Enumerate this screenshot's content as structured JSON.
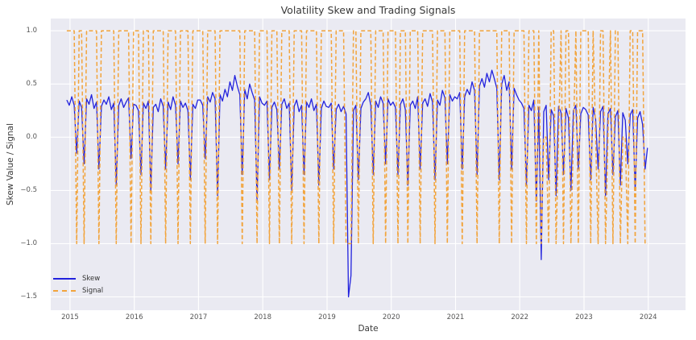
{
  "figure": {
    "background": "#ffffff"
  },
  "chart_data": {
    "type": "line",
    "title": "Volatility Skew and Trading Signals",
    "xlabel": "Date",
    "ylabel": "Skew Value / Signal",
    "plot_background": "#eaeaf2",
    "grid_color": "#ffffff",
    "grid": true,
    "legend_position": "lower-left",
    "xlim": [
      2014.7,
      2024.58
    ],
    "ylim": [
      -1.625,
      1.115
    ],
    "xticks": [
      2015,
      2016,
      2017,
      2018,
      2019,
      2020,
      2021,
      2022,
      2023,
      2024
    ],
    "xtick_labels": [
      "2015",
      "2016",
      "2017",
      "2018",
      "2019",
      "2020",
      "2021",
      "2022",
      "2023",
      "2024"
    ],
    "yticks": [
      1.0,
      0.5,
      0.0,
      -0.5,
      -1.0,
      -1.5
    ],
    "ytick_labels": [
      "1.0",
      "0.5",
      "0.0",
      "−0.5",
      "−1.0",
      "−1.5"
    ],
    "x_start": 2014.95,
    "x_step": 0.0384615,
    "series": [
      {
        "name": "Skew",
        "color": "#2222dd",
        "style": "solid",
        "values": [
          0.35,
          0.3,
          0.38,
          0.3,
          -0.15,
          0.34,
          0.28,
          -0.25,
          0.36,
          0.31,
          0.4,
          0.27,
          0.33,
          -0.3,
          0.29,
          0.35,
          0.31,
          0.38,
          0.26,
          0.32,
          -0.45,
          0.3,
          0.36,
          0.28,
          0.33,
          0.37,
          -0.2,
          0.31,
          0.3,
          0.25,
          -0.35,
          0.32,
          0.27,
          0.34,
          -0.5,
          0.28,
          0.31,
          0.24,
          0.36,
          0.29,
          -0.3,
          0.33,
          0.26,
          0.38,
          0.3,
          -0.25,
          0.34,
          0.28,
          0.32,
          0.25,
          -0.4,
          0.31,
          0.27,
          0.35,
          0.35,
          0.3,
          -0.2,
          0.38,
          0.33,
          0.42,
          0.36,
          -0.55,
          0.4,
          0.34,
          0.45,
          0.38,
          0.52,
          0.44,
          0.58,
          0.48,
          0.4,
          -0.35,
          0.45,
          0.36,
          0.5,
          0.42,
          0.35,
          -0.6,
          0.38,
          0.32,
          0.3,
          0.34,
          -0.4,
          0.28,
          0.33,
          0.26,
          -0.3,
          0.31,
          0.36,
          0.27,
          0.32,
          -0.5,
          0.29,
          0.35,
          0.24,
          0.3,
          -0.35,
          0.33,
          0.28,
          0.36,
          0.25,
          0.31,
          -0.45,
          0.27,
          0.34,
          0.29,
          0.28,
          0.32,
          -0.3,
          0.26,
          0.31,
          0.24,
          0.29,
          0.22,
          -1.5,
          -1.3,
          0.25,
          0.3,
          -0.4,
          0.27,
          0.33,
          0.36,
          0.42,
          0.3,
          -0.35,
          0.34,
          0.28,
          0.38,
          0.32,
          -0.25,
          0.36,
          0.3,
          0.33,
          0.28,
          -0.35,
          0.31,
          0.36,
          0.26,
          -0.45,
          0.3,
          0.34,
          0.27,
          0.38,
          -0.3,
          0.32,
          0.36,
          0.29,
          0.41,
          0.33,
          -0.4,
          0.35,
          0.3,
          0.44,
          0.37,
          -0.25,
          0.4,
          0.34,
          0.38,
          0.36,
          0.42,
          -0.3,
          0.38,
          0.45,
          0.4,
          0.52,
          0.44,
          -0.35,
          0.48,
          0.55,
          0.47,
          0.6,
          0.52,
          0.63,
          0.55,
          0.46,
          -0.4,
          0.5,
          0.58,
          0.44,
          0.52,
          -0.3,
          0.46,
          0.4,
          0.35,
          0.32,
          0.27,
          -0.45,
          0.3,
          0.25,
          0.35,
          -0.6,
          0.28,
          -1.15,
          0.24,
          0.3,
          -0.4,
          0.26,
          0.2,
          -0.55,
          0.29,
          0.23,
          -0.35,
          0.27,
          0.18,
          -0.5,
          0.25,
          0.3,
          -0.3,
          0.22,
          0.28,
          0.26,
          0.21,
          -0.4,
          0.28,
          0.17,
          -0.3,
          0.24,
          0.29,
          -0.55,
          0.22,
          0.27,
          -0.35,
          0.19,
          0.25,
          -0.45,
          0.23,
          0.16,
          -0.25,
          0.21,
          0.26,
          -0.5,
          0.18,
          0.24,
          0.12,
          -0.3,
          -0.1
        ]
      },
      {
        "name": "Signal",
        "color": "#f2a43c",
        "style": "dashed",
        "values": [
          1,
          1,
          1,
          1,
          -1,
          1,
          1,
          -1,
          1,
          1,
          1,
          1,
          1,
          -1,
          1,
          1,
          1,
          1,
          1,
          1,
          -1,
          1,
          1,
          1,
          1,
          1,
          -1,
          1,
          1,
          1,
          -1,
          1,
          1,
          1,
          -1,
          1,
          1,
          1,
          1,
          1,
          -1,
          1,
          1,
          1,
          1,
          -1,
          1,
          1,
          1,
          1,
          -1,
          1,
          1,
          1,
          1,
          1,
          -1,
          1,
          1,
          1,
          1,
          -1,
          1,
          1,
          1,
          1,
          1,
          1,
          1,
          1,
          1,
          -1,
          1,
          1,
          1,
          1,
          1,
          -1,
          1,
          1,
          1,
          1,
          -1,
          1,
          1,
          1,
          -1,
          1,
          1,
          1,
          1,
          -1,
          1,
          1,
          1,
          1,
          -1,
          1,
          1,
          1,
          1,
          1,
          -1,
          1,
          1,
          1,
          1,
          1,
          -1,
          1,
          1,
          1,
          1,
          -1,
          -1,
          -1,
          1,
          1,
          -1,
          1,
          1,
          1,
          1,
          1,
          -1,
          1,
          1,
          1,
          1,
          -1,
          1,
          1,
          1,
          1,
          -1,
          1,
          1,
          1,
          -1,
          1,
          1,
          1,
          1,
          -1,
          1,
          1,
          1,
          1,
          1,
          -1,
          1,
          1,
          1,
          1,
          -1,
          1,
          1,
          1,
          1,
          1,
          -1,
          1,
          1,
          1,
          1,
          1,
          -1,
          1,
          1,
          1,
          1,
          1,
          1,
          1,
          1,
          -1,
          1,
          1,
          1,
          1,
          -1,
          1,
          1,
          1,
          1,
          1,
          -1,
          1,
          1,
          1,
          -1,
          1,
          -1,
          0,
          0,
          -1,
          1,
          1,
          -1,
          0,
          1,
          -1,
          1,
          1,
          -1,
          0,
          1,
          -1,
          1,
          1,
          1,
          1,
          -1,
          1,
          0,
          -1,
          1,
          1,
          -1,
          0,
          1,
          -1,
          1,
          1,
          -1,
          0,
          0,
          -1,
          1,
          1,
          -1,
          1,
          1,
          1,
          -1,
          -1
        ]
      }
    ]
  }
}
